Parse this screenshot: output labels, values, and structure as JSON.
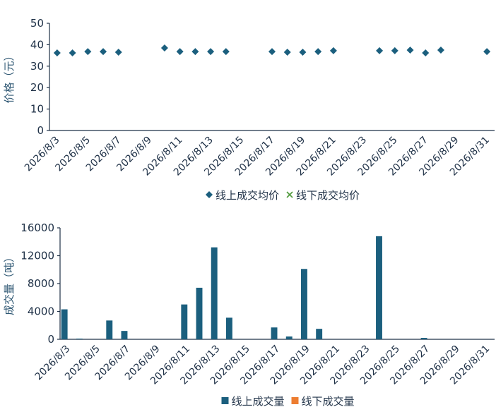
{
  "chart_data": [
    {
      "type": "scatter",
      "y_label": "价格（元）",
      "categories": [
        "2026/8/3",
        null,
        "2026/8/5",
        null,
        "2026/8/7",
        null,
        "2026/8/9",
        null,
        "2026/8/11",
        null,
        "2026/8/13",
        null,
        "2026/8/15",
        null,
        "2026/8/17",
        null,
        "2026/8/19",
        null,
        "2026/8/21",
        null,
        "2026/8/23",
        null,
        "2026/8/25",
        null,
        "2026/8/27",
        null,
        "2026/8/29",
        null,
        "2026/8/31"
      ],
      "series": [
        {
          "name": "线上成交均价",
          "color": "#1b5f7e",
          "marker": "diamond",
          "values": [
            36.2,
            36.2,
            36.8,
            36.8,
            36.5,
            null,
            null,
            38.5,
            36.8,
            36.8,
            36.8,
            36.8,
            null,
            null,
            36.8,
            36.5,
            36.5,
            36.8,
            37.2,
            null,
            null,
            37.2,
            37.2,
            37.5,
            36.2,
            37.5,
            null,
            null,
            36.8
          ]
        },
        {
          "name": "线下成交均价",
          "color": "#4f9a3c",
          "marker": "x",
          "values": [
            null,
            null,
            null,
            null,
            null,
            null,
            null,
            null,
            null,
            null,
            null,
            null,
            null,
            null,
            null,
            null,
            null,
            null,
            null,
            null,
            null,
            null,
            null,
            null,
            null,
            null,
            null,
            null,
            null
          ]
        }
      ],
      "ylim": [
        0,
        50
      ],
      "yticks": [
        0,
        10,
        20,
        30,
        40,
        50
      ]
    },
    {
      "type": "bar",
      "y_label": "成交量（吨）",
      "categories": [
        "2026/8/3",
        null,
        "2026/8/5",
        null,
        "2026/8/7",
        null,
        "2026/8/9",
        null,
        "2026/8/11",
        null,
        "2026/8/13",
        null,
        "2026/8/15",
        null,
        "2026/8/17",
        null,
        "2026/8/19",
        null,
        "2026/8/21",
        null,
        "2026/8/23",
        null,
        "2026/8/25",
        null,
        "2026/8/27",
        null,
        "2026/8/29",
        null,
        "2026/8/31"
      ],
      "series": [
        {
          "name": "线上成交量",
          "color": "#1b5f7e",
          "values": [
            4300,
            100,
            null,
            2700,
            1200,
            null,
            null,
            null,
            5000,
            7400,
            13200,
            3100,
            null,
            null,
            1700,
            400,
            10100,
            1500,
            null,
            null,
            null,
            14800,
            null,
            null,
            200,
            null,
            null,
            null,
            null
          ]
        },
        {
          "name": "线下成交量",
          "color": "#ed7d31",
          "values": [
            null,
            null,
            null,
            null,
            null,
            null,
            null,
            null,
            null,
            null,
            null,
            null,
            null,
            null,
            null,
            null,
            null,
            null,
            null,
            null,
            null,
            null,
            null,
            null,
            null,
            null,
            null,
            null,
            null
          ]
        }
      ],
      "ylim": [
        0,
        16000
      ],
      "yticks": [
        0,
        4000,
        8000,
        12000,
        16000
      ]
    }
  ]
}
